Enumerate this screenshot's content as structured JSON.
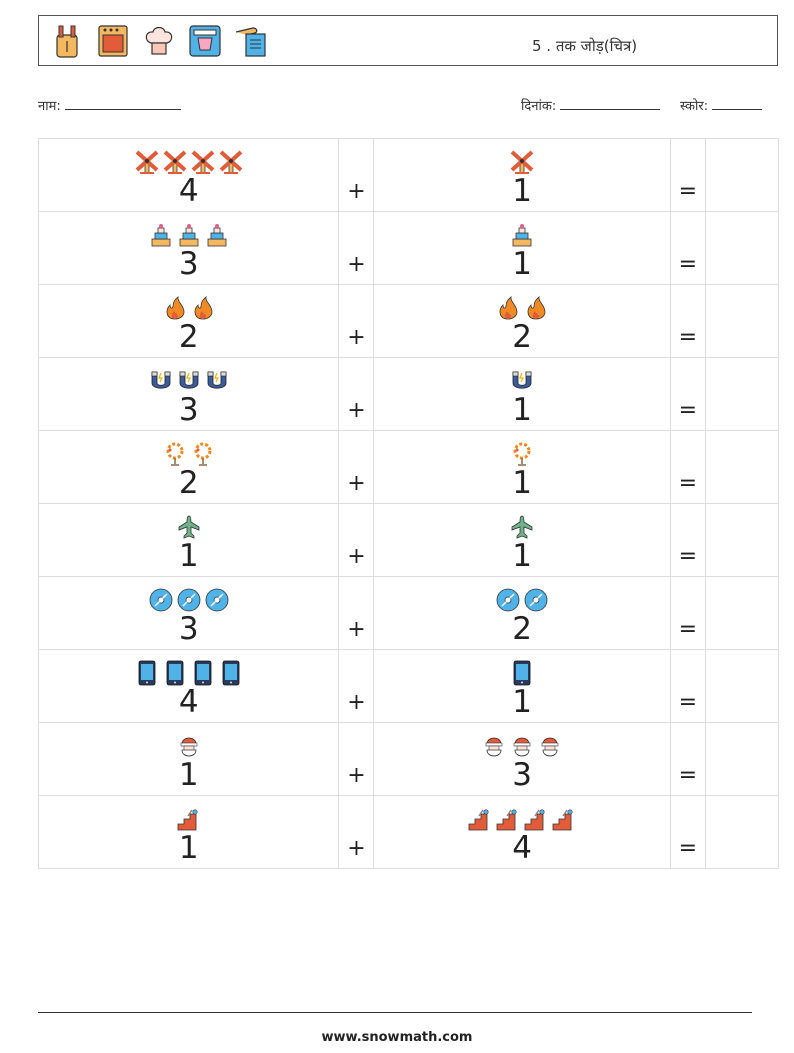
{
  "header": {
    "title": "5 . तक जोड़(चित्र)",
    "icons": [
      "knife-block-icon",
      "oven-icon",
      "chef-hat-icon",
      "blender-icon",
      "recipe-book-icon"
    ]
  },
  "meta": {
    "name_label": "नाम:",
    "date_label": "दिनांक:",
    "score_label": "स्कोर:"
  },
  "operators": {
    "plus": "+",
    "equals": "="
  },
  "rows": [
    {
      "left": 4,
      "left_icon": "windmill",
      "right": 1,
      "right_icon": "windmill"
    },
    {
      "left": 3,
      "left_icon": "cake",
      "right": 1,
      "right_icon": "cake"
    },
    {
      "left": 2,
      "left_icon": "fire",
      "right": 2,
      "right_icon": "fire"
    },
    {
      "left": 3,
      "left_icon": "magnet",
      "right": 1,
      "right_icon": "magnet"
    },
    {
      "left": 2,
      "left_icon": "wreath",
      "right": 1,
      "right_icon": "wreath"
    },
    {
      "left": 1,
      "left_icon": "plane",
      "right": 1,
      "right_icon": "plane"
    },
    {
      "left": 3,
      "left_icon": "disc",
      "right": 2,
      "right_icon": "disc"
    },
    {
      "left": 4,
      "left_icon": "phone",
      "right": 1,
      "right_icon": "phone"
    },
    {
      "left": 1,
      "left_icon": "santa",
      "right": 3,
      "right_icon": "santa"
    },
    {
      "left": 1,
      "left_icon": "stairs",
      "right": 4,
      "right_icon": "stairs"
    }
  ],
  "footer": {
    "url": "www.snowmath.com"
  }
}
